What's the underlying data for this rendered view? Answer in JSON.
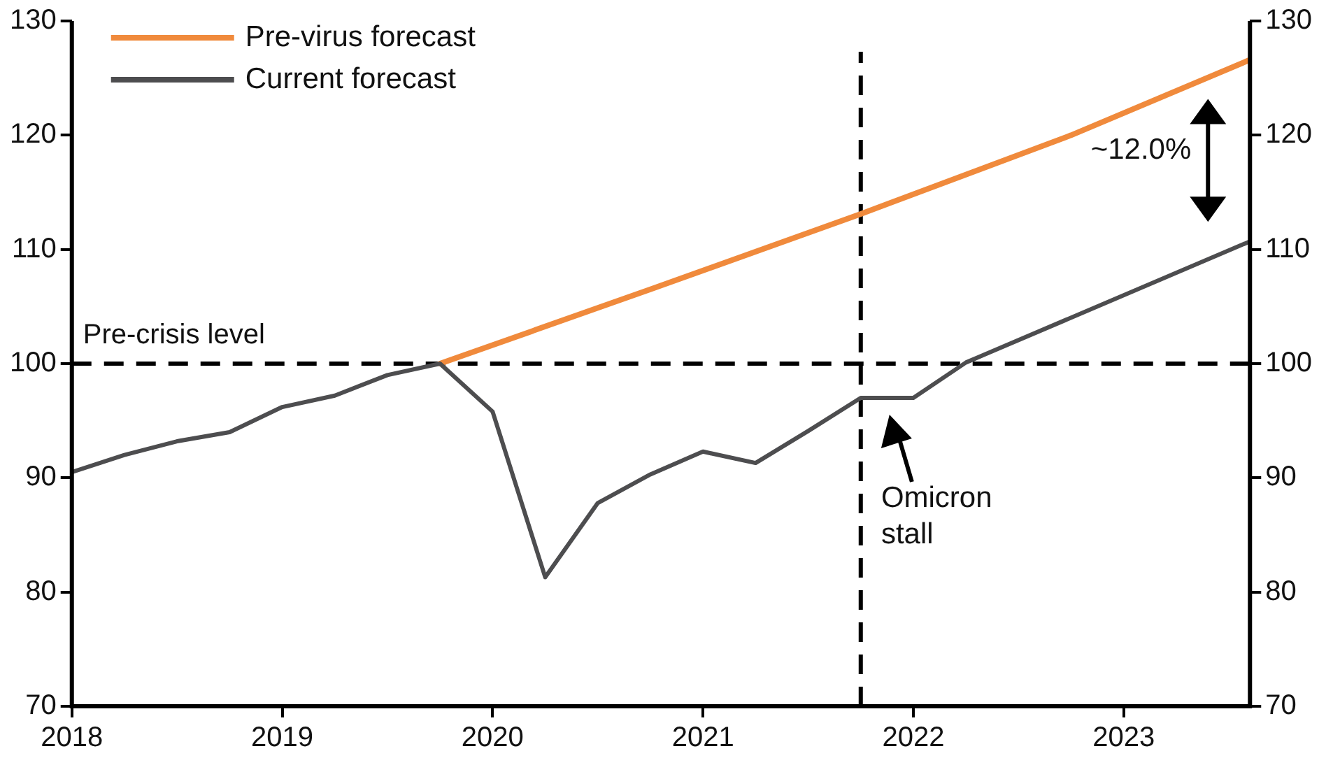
{
  "chart_data": {
    "type": "line",
    "x": [
      2018,
      2018.25,
      2018.5,
      2018.75,
      2019,
      2019.25,
      2019.5,
      2019.75,
      2020,
      2020.25,
      2020.5,
      2020.75,
      2021,
      2021.25,
      2021.5,
      2021.75,
      2022,
      2022.25,
      2023.6
    ],
    "series": [
      {
        "name": "Pre-virus forecast",
        "color": "#f08a3c",
        "x": [
          2019.75,
          2020.75,
          2021.75,
          2022.75,
          2023.6
        ],
        "values": [
          100,
          106.5,
          113.1,
          120,
          126.6
        ]
      },
      {
        "name": "Current forecast",
        "color": "#4d4d4f",
        "values": [
          90.5,
          92,
          93.2,
          94,
          96.2,
          97.2,
          99,
          100,
          95.8,
          81.3,
          87.8,
          90.3,
          92.3,
          91.3,
          94.1,
          97,
          97,
          100.1,
          110.7
        ]
      }
    ],
    "xlim": [
      2018,
      2023.6
    ],
    "xticks": [
      2018,
      2019,
      2020,
      2021,
      2022,
      2023
    ],
    "ylim": [
      70,
      130
    ],
    "yticks": [
      70,
      80,
      90,
      100,
      110,
      120,
      130
    ],
    "y2lim": [
      70,
      130
    ],
    "y2ticks": [
      70,
      80,
      90,
      100,
      110,
      120,
      130
    ],
    "ref_lines": [
      {
        "axis": "y",
        "value": 100,
        "label": "Pre-crisis level",
        "color": "#000000",
        "line_style": "dashed"
      },
      {
        "axis": "x",
        "value": 2021.75,
        "label": null,
        "color": "#000000",
        "line_style": "dashed"
      }
    ],
    "annotations": [
      "~12.0%",
      {
        "text": "Omicron stall",
        "x": 2021.9,
        "y": 97
      }
    ],
    "legend": "top left",
    "grid": false,
    "marker": "none",
    "line_style": "solid"
  }
}
